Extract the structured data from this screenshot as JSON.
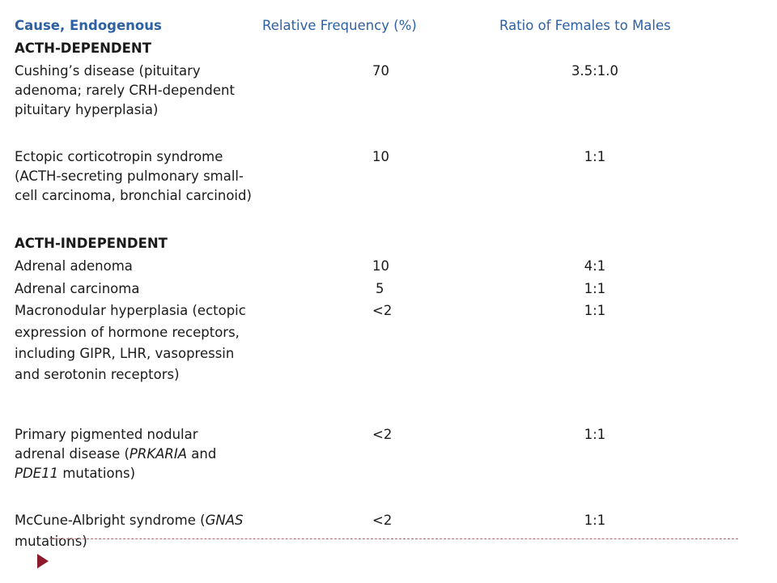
{
  "header": {
    "cause": "Cause, Endogenous",
    "frequency": "Relative Frequency (%)",
    "ratio": "Ratio of Females to Males"
  },
  "sections": [
    {
      "title": "ACTH-DEPENDENT",
      "rows": [
        {
          "cause_lines": [
            "Cushing’s disease (pituitary",
            "adenoma; rarely CRH-dependent",
            "pituitary hyperplasia)"
          ],
          "frequency": "70",
          "ratio": "3.5:1.0"
        },
        {
          "cause_lines": [
            "Ectopic corticotropin syndrome",
            "(ACTH-secreting  pulmonary small-",
            "cell carcinoma, bronchial carcinoid)"
          ],
          "frequency": "10",
          "ratio": "1:1"
        }
      ]
    },
    {
      "title": "ACTH-INDEPENDENT",
      "rows": [
        {
          "cause_lines": [
            "Adrenal adenoma"
          ],
          "frequency": "10",
          "ratio": "4:1"
        },
        {
          "cause_lines": [
            "Adrenal carcinoma"
          ],
          "frequency": "5",
          "ratio": "1:1"
        },
        {
          "cause_lines": [
            "Macronodular hyperplasia (ectopic",
            "expression of hormone receptors,",
            "including GIPR, LHR, vasopressin",
            "and serotonin  receptors)"
          ],
          "frequency": "<2",
          "ratio": "1:1"
        },
        {
          "cause_prefix": [
            "Primary pigmented nodular",
            "adrenal disease ("
          ],
          "cause_italic_1": "PRKARIA",
          "cause_mid": " and",
          "cause_italic_2": "PDE11",
          "cause_suffix": " mutations)",
          "frequency": "<2",
          "ratio": "1:1"
        },
        {
          "cause_line1_prefix": "McCune-Albright syndrome (",
          "cause_line1_italic": "GNAS",
          "cause_line2": "mutations)",
          "frequency": "<2",
          "ratio": "1:1"
        }
      ]
    }
  ]
}
